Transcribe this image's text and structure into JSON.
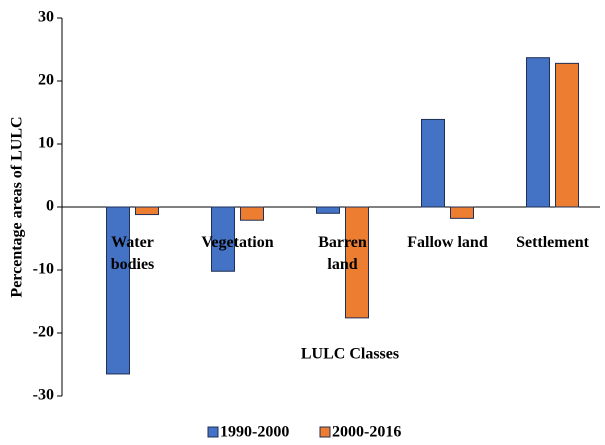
{
  "chart_data": {
    "type": "bar",
    "categories": [
      "Water\nbodies",
      "Vegetation",
      "Barren\nland",
      "Fallow land",
      "Settlement"
    ],
    "series": [
      {
        "name": "1990-2000",
        "color": "#4472c4",
        "values": [
          -26.5,
          -10.2,
          -1.0,
          13.9,
          23.7
        ]
      },
      {
        "name": "2000-2016",
        "color": "#ed7d31",
        "values": [
          -1.2,
          -2.1,
          -17.6,
          -1.8,
          22.8
        ]
      }
    ],
    "xlabel": "LULC Classes",
    "ylabel": "Percentage areas of LULC",
    "ylim": [
      -30,
      30
    ],
    "yticks": [
      -30,
      -20,
      -10,
      0,
      10,
      20,
      30
    ],
    "legend": "bottom"
  }
}
